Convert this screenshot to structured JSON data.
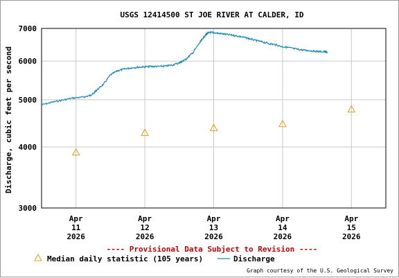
{
  "chart_data": {
    "type": "line",
    "title": "USGS 12414500 ST JOE RIVER AT CALDER, ID",
    "ylabel": "Discharge, cubic feet per second",
    "xlabel": "",
    "y_scale": "log",
    "ylim": [
      3000,
      7000
    ],
    "y_ticks": [
      3000,
      4000,
      5000,
      6000,
      7000
    ],
    "x_range_days": [
      10.5,
      15.5
    ],
    "x_ticks": [
      {
        "month": "Apr",
        "day": "11",
        "year": "2026",
        "pos": 11
      },
      {
        "month": "Apr",
        "day": "12",
        "year": "2026",
        "pos": 12
      },
      {
        "month": "Apr",
        "day": "13",
        "year": "2026",
        "pos": 13
      },
      {
        "month": "Apr",
        "day": "14",
        "year": "2026",
        "pos": 14
      },
      {
        "month": "Apr",
        "day": "15",
        "year": "2026",
        "pos": 15
      }
    ],
    "grid": true,
    "provisional_note": "---- Provisional Data Subject to Revision ----",
    "series": [
      {
        "name": "Discharge",
        "kind": "line",
        "color": "#1a88b8",
        "points": [
          [
            10.5,
            4880
          ],
          [
            10.65,
            4940
          ],
          [
            10.8,
            4990
          ],
          [
            10.95,
            5040
          ],
          [
            11.1,
            5060
          ],
          [
            11.2,
            5100
          ],
          [
            11.25,
            5140
          ],
          [
            11.3,
            5230
          ],
          [
            11.4,
            5380
          ],
          [
            11.5,
            5620
          ],
          [
            11.6,
            5730
          ],
          [
            11.7,
            5780
          ],
          [
            11.8,
            5810
          ],
          [
            11.9,
            5830
          ],
          [
            12.0,
            5840
          ],
          [
            12.1,
            5850
          ],
          [
            12.2,
            5850
          ],
          [
            12.3,
            5860
          ],
          [
            12.4,
            5890
          ],
          [
            12.5,
            5950
          ],
          [
            12.55,
            6000
          ],
          [
            12.6,
            6060
          ],
          [
            12.7,
            6250
          ],
          [
            12.8,
            6550
          ],
          [
            12.85,
            6700
          ],
          [
            12.9,
            6830
          ],
          [
            12.95,
            6870
          ],
          [
            13.0,
            6860
          ],
          [
            13.1,
            6830
          ],
          [
            13.2,
            6800
          ],
          [
            13.3,
            6770
          ],
          [
            13.4,
            6730
          ],
          [
            13.5,
            6680
          ],
          [
            13.6,
            6620
          ],
          [
            13.7,
            6570
          ],
          [
            13.8,
            6520
          ],
          [
            13.9,
            6480
          ],
          [
            14.0,
            6420
          ],
          [
            14.1,
            6390
          ],
          [
            14.2,
            6350
          ],
          [
            14.3,
            6320
          ],
          [
            14.4,
            6300
          ],
          [
            14.5,
            6280
          ],
          [
            14.6,
            6270
          ],
          [
            14.65,
            6260
          ]
        ]
      },
      {
        "name": "Median daily statistic (105 years)",
        "kind": "marker",
        "color": "#e0a010",
        "points": [
          [
            11.0,
            3900
          ],
          [
            12.0,
            4280
          ],
          [
            13.0,
            4380
          ],
          [
            14.0,
            4460
          ],
          [
            15.0,
            4780
          ]
        ]
      }
    ],
    "legend": {
      "placement": "bottom",
      "median_label": "Median daily statistic (105 years)",
      "discharge_label": "Discharge"
    }
  },
  "footer": {
    "credit": "Graph courtesy of the U.S. Geological Survey"
  }
}
